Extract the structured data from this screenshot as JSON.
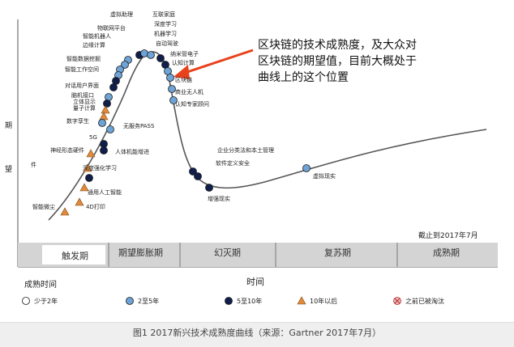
{
  "y_axis_label": [
    "期",
    "望"
  ],
  "x_axis_label": "时间",
  "date_note": "截止到2017年7月",
  "callout_text": [
    "区块链的技术成熟度，及大众对",
    "区块链的期望值，目前大概处于",
    "曲线上的这个位置"
  ],
  "phases": [
    "触发期",
    "期望膨胀期",
    "幻灭期",
    "复苏期",
    "成熟期"
  ],
  "technologies": [
    {
      "name": "虚拟助理",
      "type": "blue"
    },
    {
      "name": "物联网平台",
      "type": "blue"
    },
    {
      "name": "智能机器人",
      "type": "blue"
    },
    {
      "name": "边缘计算",
      "type": "blue"
    },
    {
      "name": "智能数据挖掘",
      "type": "dark"
    },
    {
      "name": "智能工作空间",
      "type": "dark"
    },
    {
      "name": "对话用户界面",
      "type": "blue"
    },
    {
      "name": "脑机接口",
      "type": "dark"
    },
    {
      "name": "立体显示",
      "type": "orange"
    },
    {
      "name": "量子计算",
      "type": "orange"
    },
    {
      "name": "数字孪生",
      "type": "blue"
    },
    {
      "name": "神经形态硬件",
      "type": "orange"
    },
    {
      "name": "件",
      "type": "orange"
    },
    {
      "name": "深度强化学习",
      "type": "dark"
    },
    {
      "name": "通用人工智能",
      "type": "orange"
    },
    {
      "name": "4D打印",
      "type": "orange"
    },
    {
      "name": "智能微尘",
      "type": "orange"
    },
    {
      "name": "5G",
      "type": "dark"
    },
    {
      "name": "人体机能增进",
      "type": "dark"
    },
    {
      "name": "无服务PASS",
      "type": "blue"
    },
    {
      "name": "互联家庭",
      "type": "dark"
    },
    {
      "name": "深度学习",
      "type": "blue"
    },
    {
      "name": "机器学习",
      "type": "blue"
    },
    {
      "name": "自动驾驶",
      "type": "dark"
    },
    {
      "name": "纳米管电子",
      "type": "dark"
    },
    {
      "name": "认知计算",
      "type": "blue"
    },
    {
      "name": "区块链",
      "type": "blue"
    },
    {
      "name": "商业无人机",
      "type": "blue"
    },
    {
      "name": "认知专家顾问",
      "type": "blue"
    },
    {
      "name": "企业分类法和本土管理",
      "type": "dark"
    },
    {
      "name": "软件定义安全",
      "type": "dark"
    },
    {
      "name": "增强现实",
      "type": "dark"
    },
    {
      "name": "虚拟现实",
      "type": "blue"
    }
  ],
  "legend_title": "成熟时间",
  "legend": [
    {
      "label": "少于2年",
      "type": "white"
    },
    {
      "label": "2至5年",
      "type": "blue"
    },
    {
      "label": "5至10年",
      "type": "dark"
    },
    {
      "label": "10年以后",
      "type": "orange"
    },
    {
      "label": "之前已被淘汰",
      "type": "obsolete"
    }
  ],
  "caption": "图1  2017新兴技术成熟度曲线（来源：Gartner 2017年7月）"
}
